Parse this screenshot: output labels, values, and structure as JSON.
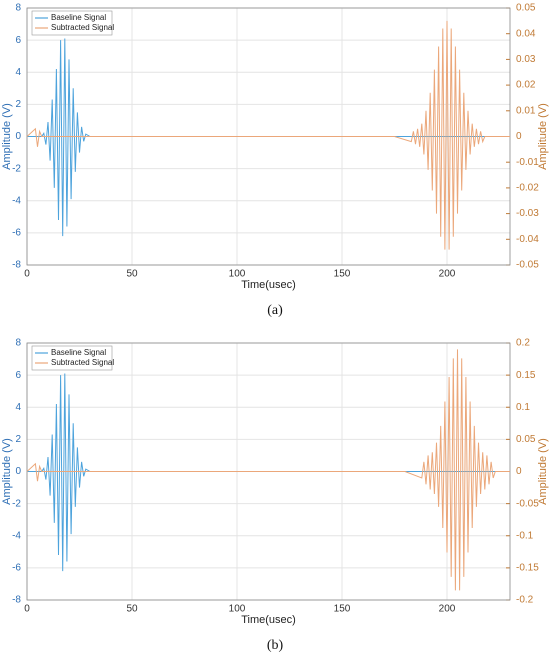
{
  "chart_data": [
    {
      "type": "line",
      "caption": "(a)",
      "xlabel": "Time(usec)",
      "ylabel": "Amplitude (V)",
      "y2label": "Amplitude (V)",
      "xlim": [
        0,
        230
      ],
      "xticks": [
        0,
        50,
        100,
        150,
        200
      ],
      "ylim": [
        -8,
        8
      ],
      "yticks": [
        -8,
        -6,
        -4,
        -2,
        0,
        2,
        4,
        6,
        8
      ],
      "y2lim": [
        -0.05,
        0.05
      ],
      "y2ticks": [
        -0.05,
        -0.04,
        -0.03,
        -0.02,
        -0.01,
        0,
        0.01,
        0.02,
        0.03,
        0.04,
        0.05
      ],
      "grid": true,
      "legend": "upper left",
      "series": [
        {
          "name": "Baseline Signal",
          "color": "#4da3dc",
          "x": [
            0,
            5,
            7,
            8,
            9,
            10,
            11,
            12,
            13,
            14,
            15,
            16,
            17,
            18,
            19,
            20,
            21,
            22,
            23,
            24,
            25,
            26,
            27,
            28,
            30,
            230
          ],
          "values": [
            0,
            0,
            0,
            0.2,
            -0.5,
            0.9,
            -1.5,
            2.3,
            -3.2,
            4.2,
            -5.2,
            6.0,
            -6.2,
            6.1,
            -5.6,
            4.8,
            -3.9,
            3.0,
            -2.2,
            1.5,
            -1.0,
            0.6,
            -0.3,
            0.15,
            0,
            0
          ]
        },
        {
          "name": "Subtracted Signal",
          "color": "#eba77a",
          "axis": "y2",
          "x": [
            0,
            4,
            5,
            6,
            7,
            175,
            183,
            184,
            185,
            186,
            187,
            188,
            189,
            190,
            191,
            192,
            193,
            194,
            195,
            196,
            197,
            198,
            199,
            200,
            201,
            202,
            203,
            204,
            205,
            206,
            207,
            208,
            209,
            210,
            211,
            212,
            213,
            214,
            215,
            216,
            217,
            218,
            230
          ],
          "values": [
            0,
            0.003,
            -0.004,
            0.002,
            0,
            0,
            -0.002,
            0.002,
            -0.003,
            0.003,
            -0.004,
            0.005,
            -0.007,
            0.01,
            -0.013,
            0.017,
            -0.021,
            0.026,
            -0.03,
            0.035,
            -0.039,
            0.042,
            -0.044,
            0.045,
            -0.044,
            0.042,
            -0.039,
            0.035,
            -0.03,
            0.026,
            -0.021,
            0.017,
            -0.013,
            0.01,
            -0.007,
            0.005,
            -0.004,
            0.003,
            -0.003,
            0.002,
            -0.002,
            0,
            0
          ]
        }
      ]
    },
    {
      "type": "line",
      "caption": "(b)",
      "xlabel": "Time(usec)",
      "ylabel": "Amplitude (V)",
      "y2label": "Amplitude (V)",
      "xlim": [
        0,
        230
      ],
      "xticks": [
        0,
        50,
        100,
        150,
        200
      ],
      "ylim": [
        -8,
        8
      ],
      "yticks": [
        -8,
        -6,
        -4,
        -2,
        0,
        2,
        4,
        6,
        8
      ],
      "y2lim": [
        -0.2,
        0.2
      ],
      "y2ticks": [
        -0.2,
        -0.15,
        -0.1,
        -0.05,
        0,
        0.05,
        0.1,
        0.15,
        0.2
      ],
      "grid": true,
      "legend": "upper left",
      "series": [
        {
          "name": "Baseline Signal",
          "color": "#4da3dc",
          "x": [
            0,
            5,
            7,
            8,
            9,
            10,
            11,
            12,
            13,
            14,
            15,
            16,
            17,
            18,
            19,
            20,
            21,
            22,
            23,
            24,
            25,
            26,
            27,
            28,
            30,
            230
          ],
          "values": [
            0,
            0,
            0,
            0.2,
            -0.5,
            0.9,
            -1.5,
            2.3,
            -3.2,
            4.2,
            -5.2,
            6.0,
            -6.2,
            6.1,
            -5.6,
            4.8,
            -3.9,
            3.0,
            -2.2,
            1.5,
            -1.0,
            0.6,
            -0.3,
            0.15,
            0,
            0
          ]
        },
        {
          "name": "Subtracted Signal",
          "color": "#eba77a",
          "axis": "y2",
          "x": [
            0,
            4,
            5,
            6,
            7,
            180,
            188,
            189,
            190,
            191,
            192,
            193,
            194,
            195,
            196,
            197,
            198,
            199,
            200,
            201,
            202,
            203,
            204,
            205,
            206,
            207,
            208,
            209,
            210,
            211,
            212,
            213,
            214,
            215,
            216,
            217,
            218,
            219,
            220,
            221,
            222,
            223,
            230
          ],
          "values": [
            0,
            0.012,
            -0.015,
            0.008,
            0,
            0,
            -0.01,
            0.015,
            -0.02,
            0.025,
            -0.028,
            0.03,
            -0.035,
            0.045,
            -0.055,
            0.071,
            -0.088,
            0.109,
            -0.126,
            0.147,
            -0.164,
            0.176,
            -0.185,
            0.19,
            -0.185,
            0.176,
            -0.164,
            0.147,
            -0.126,
            0.109,
            -0.088,
            0.071,
            -0.055,
            0.045,
            -0.035,
            0.03,
            -0.028,
            0.025,
            -0.02,
            0.015,
            -0.01,
            0,
            0
          ]
        }
      ]
    }
  ]
}
